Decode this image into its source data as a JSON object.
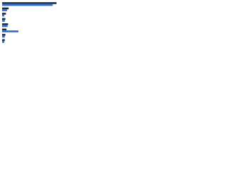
{
  "chart_data": {
    "type": "bar",
    "orientation": "horizontal",
    "categories": [
      null,
      null,
      null,
      null,
      null,
      null,
      null,
      null
    ],
    "series": [
      {
        "color": "#1b2a4a",
        "values": [
          100,
          12,
          7,
          6,
          11,
          8,
          6,
          5
        ]
      },
      {
        "color": "#2f6fd1",
        "values": [
          93,
          9,
          4,
          5,
          10,
          30,
          5,
          4
        ]
      }
    ],
    "xlim": [
      0,
      100
    ]
  }
}
